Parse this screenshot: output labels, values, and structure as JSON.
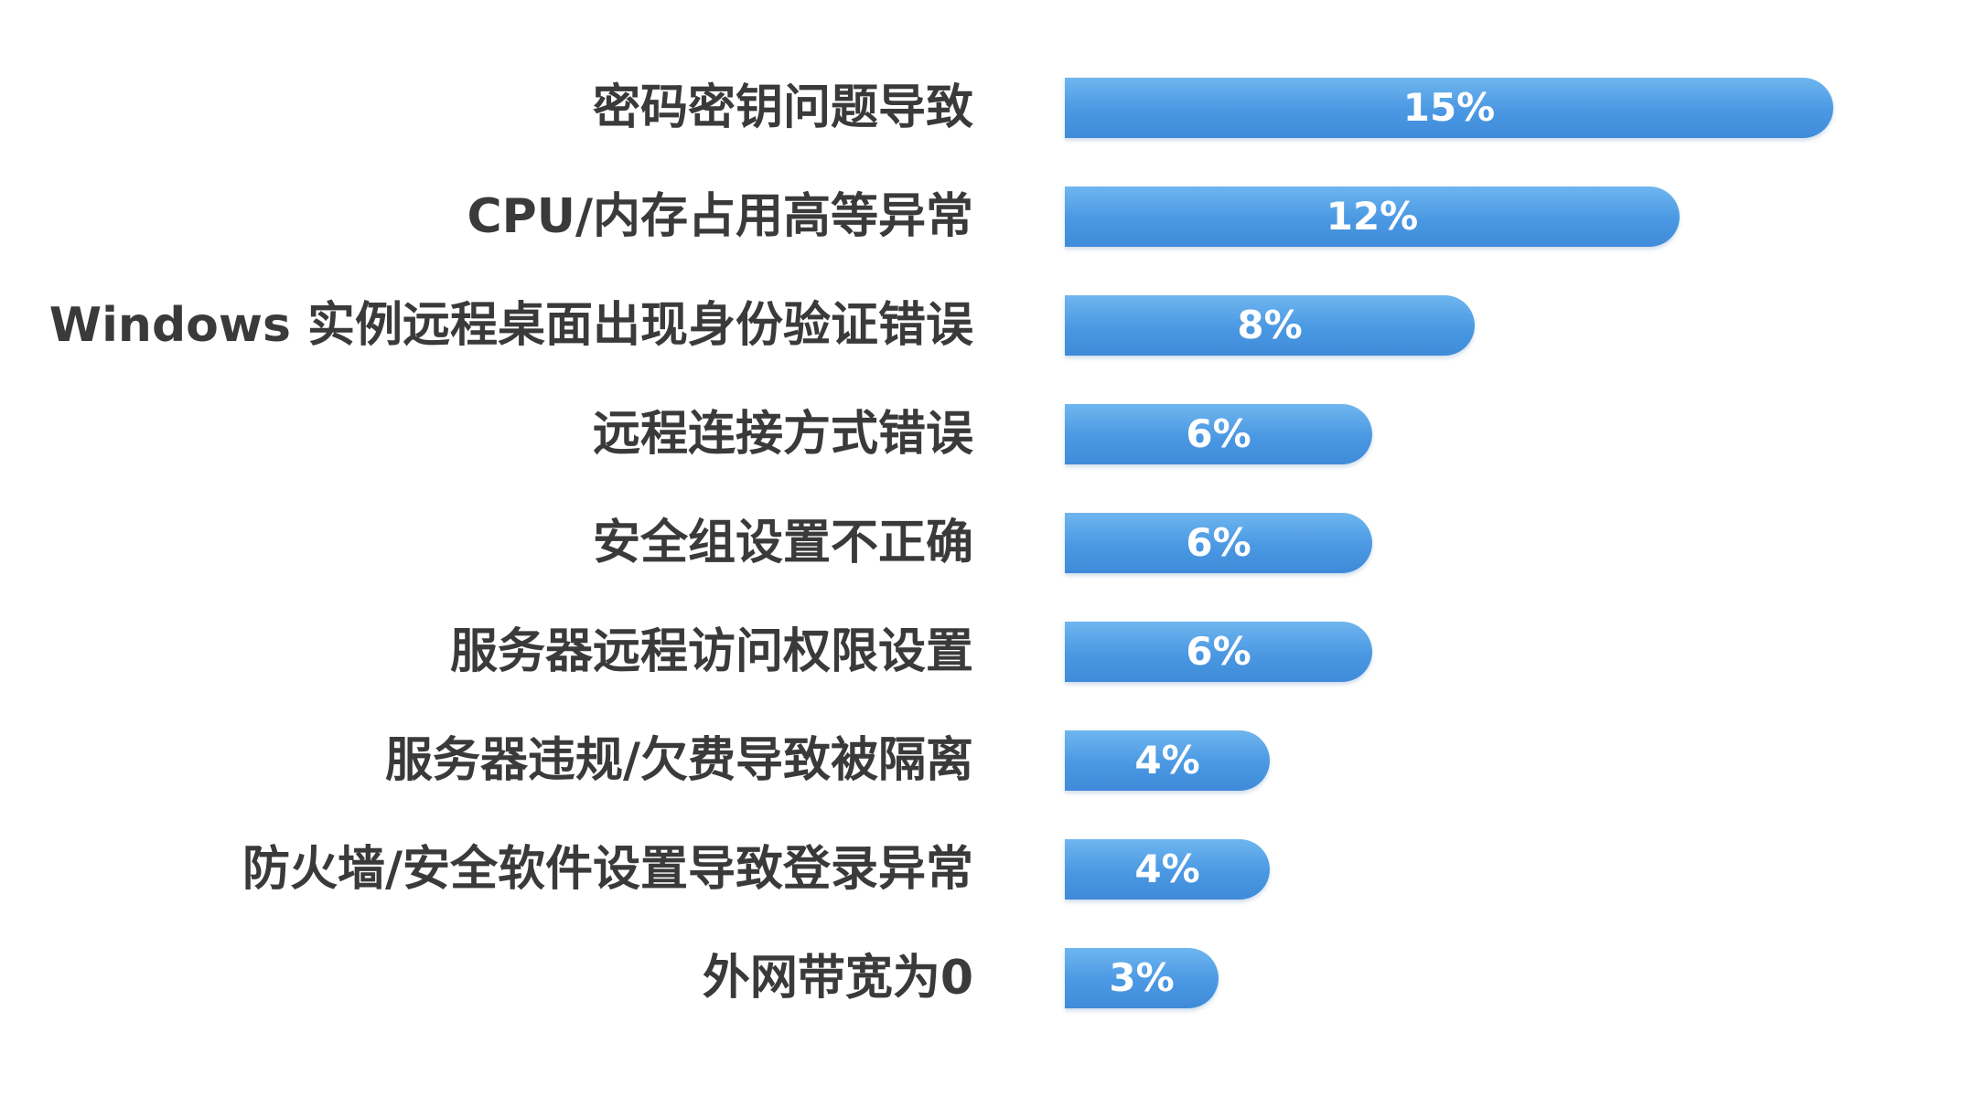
{
  "chart_data": {
    "type": "bar",
    "orientation": "horizontal",
    "categories": [
      "密码密钥问题导致",
      "CPU/内存占用高等异常",
      "Windows 实例远程桌面出现身份验证错误",
      "远程连接方式错误",
      "安全组设置不正确",
      "服务器远程访问权限设置",
      "服务器违规/欠费导致被隔离",
      "防火墙/安全软件设置导致登录异常",
      "外网带宽为0"
    ],
    "values": [
      15,
      12,
      8,
      6,
      6,
      6,
      4,
      4,
      3
    ],
    "data_labels": [
      "15%",
      "12%",
      "8%",
      "6%",
      "6%",
      "6%",
      "4%",
      "4%",
      "3%"
    ],
    "unit": "%",
    "title": "",
    "xlabel": "",
    "ylabel": "",
    "xlim": [
      0,
      15
    ],
    "grid": false,
    "legend": "none",
    "bar_color": "#4a98e3"
  }
}
